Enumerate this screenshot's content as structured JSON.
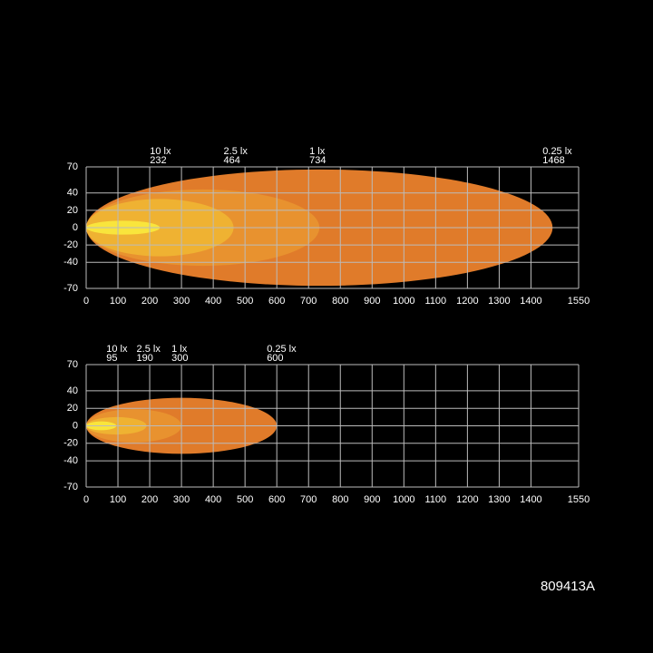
{
  "chart_data": [
    {
      "type": "isolux",
      "xlim": [
        0,
        1550
      ],
      "xticks": [
        0,
        100,
        200,
        300,
        400,
        500,
        600,
        700,
        800,
        900,
        1000,
        1100,
        1200,
        1300,
        1400,
        1550
      ],
      "ylim": [
        -70,
        70
      ],
      "yticks": [
        -70,
        -40,
        -20,
        0,
        20,
        40,
        70
      ],
      "grid": true,
      "contours": [
        {
          "name": "0.25 lx",
          "reach": 1468,
          "half_width": 67,
          "color": "#e07b2a"
        },
        {
          "name": "1 lx",
          "reach": 734,
          "half_width": 44,
          "color": "#e8922f"
        },
        {
          "name": "2.5 lx",
          "reach": 464,
          "half_width": 33,
          "color": "#efb232"
        },
        {
          "name": "10 lx",
          "reach": 232,
          "half_width": 8,
          "color": "#f9e53c"
        }
      ]
    },
    {
      "type": "isolux",
      "xlim": [
        0,
        1550
      ],
      "xticks": [
        0,
        100,
        200,
        300,
        400,
        500,
        600,
        700,
        800,
        900,
        1000,
        1100,
        1200,
        1300,
        1400,
        1550
      ],
      "ylim": [
        -70,
        70
      ],
      "yticks": [
        -70,
        -40,
        -20,
        0,
        20,
        40,
        70
      ],
      "grid": true,
      "contours": [
        {
          "name": "0.25 lx",
          "reach": 600,
          "half_width": 32,
          "color": "#e07b2a"
        },
        {
          "name": "1 lx",
          "reach": 300,
          "half_width": 19,
          "color": "#e8922f"
        },
        {
          "name": "2.5 lx",
          "reach": 190,
          "half_width": 10,
          "color": "#efb232"
        },
        {
          "name": "10 lx",
          "reach": 95,
          "half_width": 5,
          "color": "#f9e53c"
        }
      ]
    }
  ],
  "code": "809413A"
}
